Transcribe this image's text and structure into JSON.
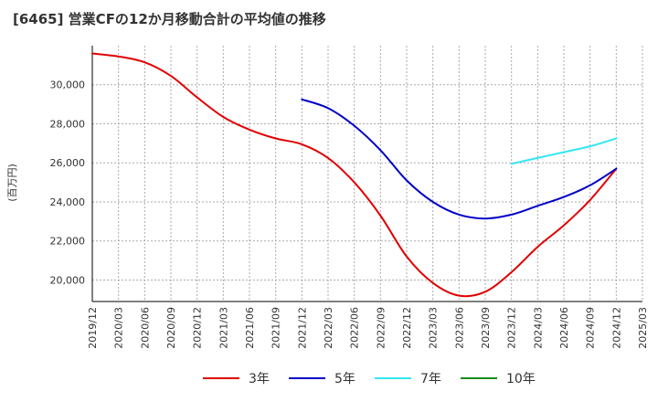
{
  "title": "[6465]  営業CFの12か月移動合計の平均値の推移",
  "chart_data": {
    "type": "line",
    "title": "[6465]  営業CFの12か月移動合計の平均値の推移",
    "ylabel": "(百万円)",
    "xlabel": "",
    "xlim": [
      "2019/12",
      "2025/03"
    ],
    "ylim": [
      18900,
      32000
    ],
    "yticks": [
      20000,
      22000,
      24000,
      26000,
      28000,
      30000
    ],
    "ytick_labels": [
      "20,000",
      "22,000",
      "24,000",
      "26,000",
      "28,000",
      "30,000"
    ],
    "xtick_labels": [
      "2019/12",
      "2020/03",
      "2020/06",
      "2020/09",
      "2020/12",
      "2021/03",
      "2021/06",
      "2021/09",
      "2021/12",
      "2022/03",
      "2022/06",
      "2022/09",
      "2022/12",
      "2023/03",
      "2023/06",
      "2023/09",
      "2023/12",
      "2024/03",
      "2024/06",
      "2024/09",
      "2024/12",
      "2025/03"
    ],
    "grid": true,
    "legend_position": "bottom",
    "series": [
      {
        "name": "3年",
        "color": "#e00000",
        "points": [
          [
            "2019/12",
            31600
          ],
          [
            "2020/03",
            31450
          ],
          [
            "2020/06",
            31150
          ],
          [
            "2020/09",
            30450
          ],
          [
            "2020/12",
            29350
          ],
          [
            "2021/03",
            28350
          ],
          [
            "2021/06",
            27700
          ],
          [
            "2021/09",
            27250
          ],
          [
            "2021/12",
            26950
          ],
          [
            "2022/03",
            26250
          ],
          [
            "2022/06",
            25000
          ],
          [
            "2022/09",
            23300
          ],
          [
            "2022/12",
            21200
          ],
          [
            "2023/03",
            19850
          ],
          [
            "2023/06",
            19200
          ],
          [
            "2023/09",
            19400
          ],
          [
            "2023/12",
            20400
          ],
          [
            "2024/03",
            21700
          ],
          [
            "2024/06",
            22800
          ],
          [
            "2024/09",
            24100
          ],
          [
            "2024/12",
            25700
          ]
        ]
      },
      {
        "name": "5年",
        "color": "#0000c8",
        "points": [
          [
            "2021/12",
            29250
          ],
          [
            "2022/03",
            28800
          ],
          [
            "2022/06",
            27900
          ],
          [
            "2022/09",
            26650
          ],
          [
            "2022/12",
            25100
          ],
          [
            "2023/03",
            24000
          ],
          [
            "2023/06",
            23350
          ],
          [
            "2023/09",
            23150
          ],
          [
            "2023/12",
            23350
          ],
          [
            "2024/03",
            23800
          ],
          [
            "2024/06",
            24250
          ],
          [
            "2024/09",
            24850
          ],
          [
            "2024/12",
            25700
          ]
        ]
      },
      {
        "name": "7年",
        "color": "#33e6f0",
        "points": [
          [
            "2023/12",
            25950
          ],
          [
            "2024/03",
            26250
          ],
          [
            "2024/06",
            26550
          ],
          [
            "2024/09",
            26850
          ],
          [
            "2024/12",
            27250
          ]
        ]
      },
      {
        "name": "10年",
        "color": "#1a8c1a",
        "points": []
      }
    ]
  }
}
